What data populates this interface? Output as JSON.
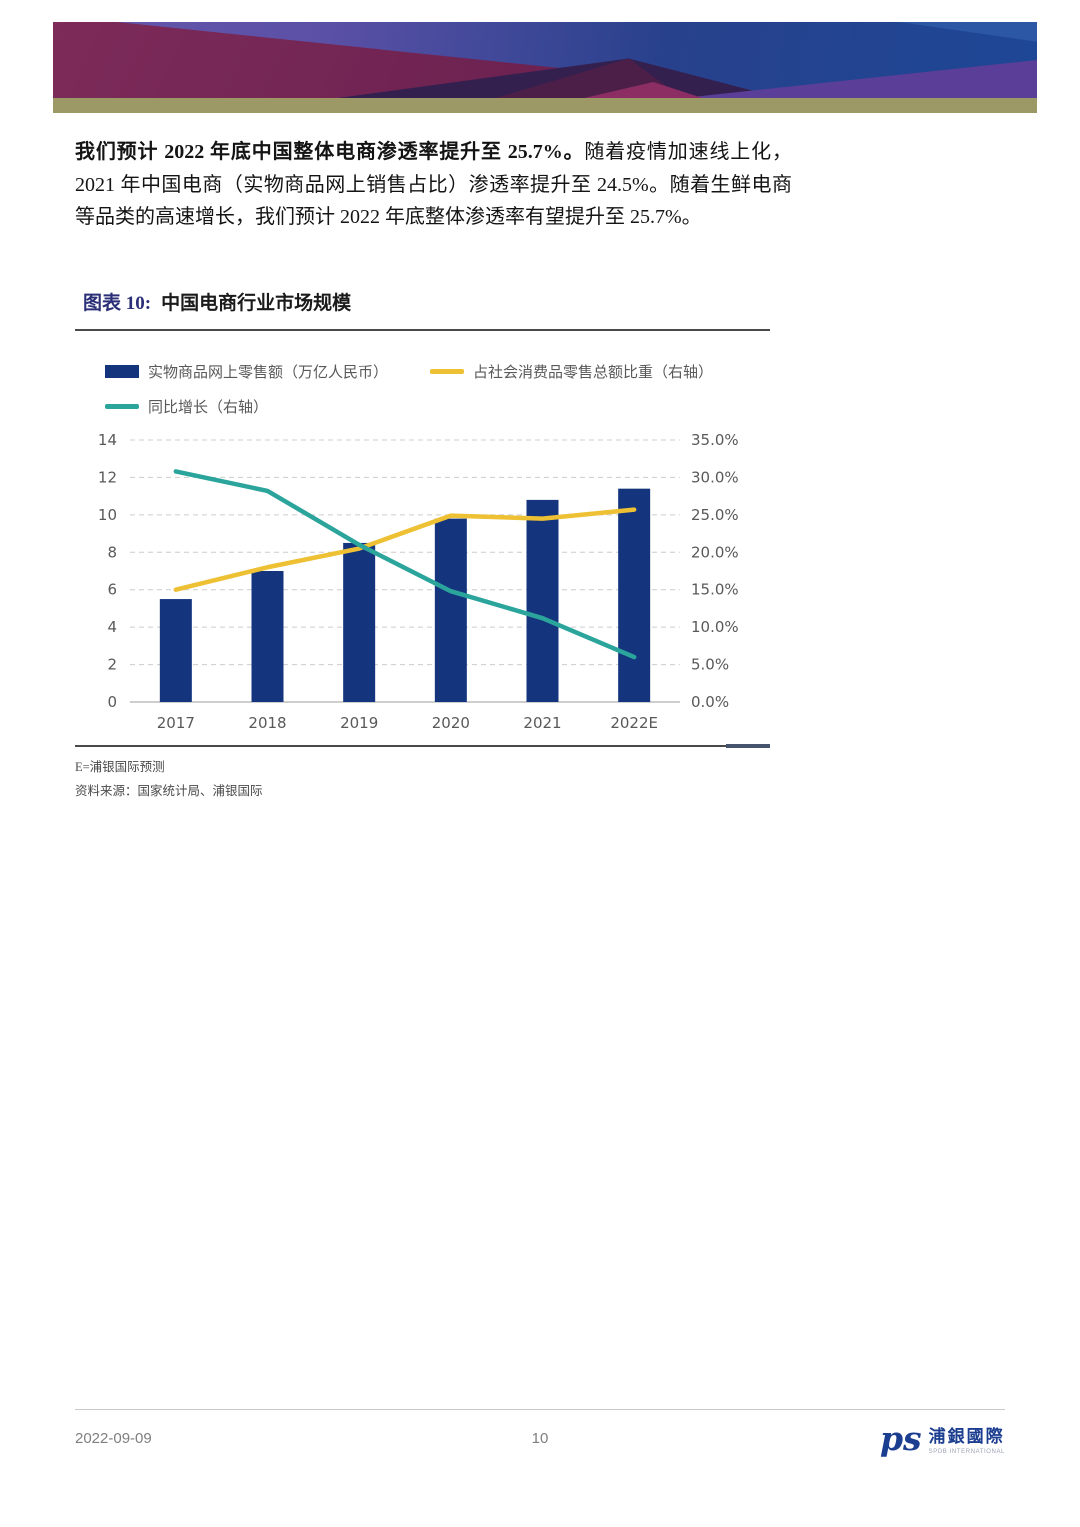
{
  "paragraph": {
    "bold_sentence": "我们预计 2022 年底中国整体电商渗透率提升至 25.7%。",
    "rest": "随着疫情加速线上化，2021 年中国电商（实物商品网上销售占比）渗透率提升至 24.5%。随着生鲜电商等品类的高速增长，我们预计 2022 年底整体渗透率有望提升至 25.7%。"
  },
  "figure": {
    "label": "图表 10:",
    "title": "中国电商行业市场规模",
    "note_forecast": "E=浦银国际预测",
    "note_source": "资料来源：国家统计局、浦银国际"
  },
  "footer": {
    "date": "2022-09-09",
    "page_number": "10",
    "logo_mark": "ps",
    "logo_text_cn": "浦銀國際",
    "logo_text_en": "SPDB INTERNATIONAL"
  },
  "chart_data": {
    "type": "bar+line",
    "title": "中国电商行业市场规模",
    "categories": [
      "2017",
      "2018",
      "2019",
      "2020",
      "2021",
      "2022E"
    ],
    "series": [
      {
        "name": "实物商品网上零售额（万亿人民币）",
        "type": "bar",
        "axis": "left",
        "color": "#14357d",
        "values": [
          5.5,
          7.0,
          8.5,
          9.8,
          10.8,
          11.4
        ]
      },
      {
        "name": "占社会消费品零售总额比重（右轴）",
        "type": "line",
        "axis": "right",
        "color": "#eec033",
        "values": [
          15.0,
          18.0,
          20.5,
          24.9,
          24.5,
          25.7
        ]
      },
      {
        "name": "同比增长（右轴）",
        "type": "line",
        "axis": "right",
        "color": "#2ba59c",
        "values": [
          30.8,
          28.2,
          21.0,
          14.8,
          11.2,
          6.0
        ]
      }
    ],
    "left_axis": {
      "min": 0,
      "max": 14,
      "ticks": [
        0,
        2,
        4,
        6,
        8,
        10,
        12,
        14
      ]
    },
    "right_axis": {
      "min": 0,
      "max": 35,
      "tick_values": [
        0,
        5,
        10,
        15,
        20,
        25,
        30,
        35
      ],
      "tick_labels": [
        "0.0%",
        "5.0%",
        "10.0%",
        "15.0%",
        "20.0%",
        "25.0%",
        "30.0%",
        "35.0%"
      ]
    },
    "grid": "horizontal-dashed",
    "legend_position": "top",
    "axis_label_color": "#595959"
  }
}
